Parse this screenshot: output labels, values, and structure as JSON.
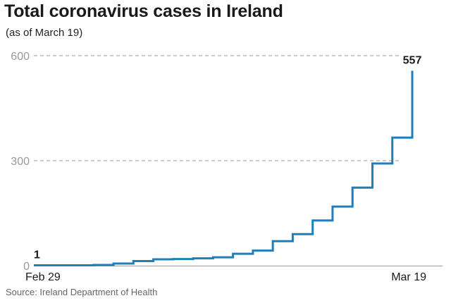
{
  "chart_data": {
    "type": "line",
    "step": true,
    "title": "Total coronavirus cases in Ireland",
    "subtitle": "(as of March 19)",
    "source": "Source: Ireland Department of Health",
    "x": [
      "Feb 29",
      "Mar 1",
      "Mar 2",
      "Mar 3",
      "Mar 4",
      "Mar 5",
      "Mar 6",
      "Mar 7",
      "Mar 8",
      "Mar 9",
      "Mar 10",
      "Mar 11",
      "Mar 12",
      "Mar 13",
      "Mar 14",
      "Mar 15",
      "Mar 16",
      "Mar 17",
      "Mar 18",
      "Mar 19"
    ],
    "series": [
      {
        "values": [
          1,
          1,
          1,
          2,
          6,
          13,
          18,
          19,
          21,
          24,
          34,
          43,
          70,
          90,
          129,
          169,
          223,
          292,
          366,
          557
        ]
      }
    ],
    "xticks": [
      "Feb 29",
      "Mar 19"
    ],
    "yticks": [
      0,
      300,
      600
    ],
    "ylim": [
      0,
      600
    ],
    "data_labels": [
      {
        "index": 0,
        "text": "1"
      },
      {
        "index": 19,
        "text": "557"
      }
    ],
    "grid": true,
    "line_color": "#1f7fb6",
    "grid_color": "#9a9a9a"
  }
}
